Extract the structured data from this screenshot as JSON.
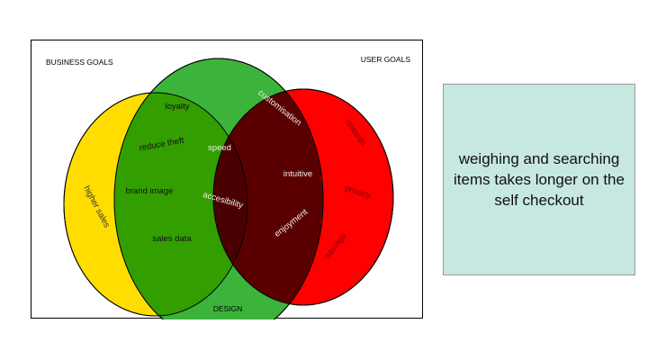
{
  "venn": {
    "titles": {
      "business": "BUSINESS GOALS",
      "user": "USER GOALS",
      "design": "DESIGN"
    },
    "colors": {
      "business": "#ffdd00",
      "design": "#3cb43c",
      "user": "#ff0000",
      "business_design": "#339e00",
      "design_user": "#5a0000",
      "center": "#4a0000",
      "business_user": "#4a0000"
    },
    "items": {
      "higher_sales": "higher sales",
      "loyalty": "loyalty",
      "reduce_theft": "reduce theft",
      "brand_image": "brand image",
      "sales_data": "sales data",
      "speed": "speed",
      "accesibility": "accesibility",
      "customisation": "customisation",
      "intuitive": "intuitive",
      "enjoyment": "enjoyment",
      "rewards": "rewards",
      "privacy": "privacy",
      "savings": "savings"
    }
  },
  "note": {
    "text": "weighing and searching items takes longer on the self checkout",
    "background": "#c6e8e0"
  }
}
